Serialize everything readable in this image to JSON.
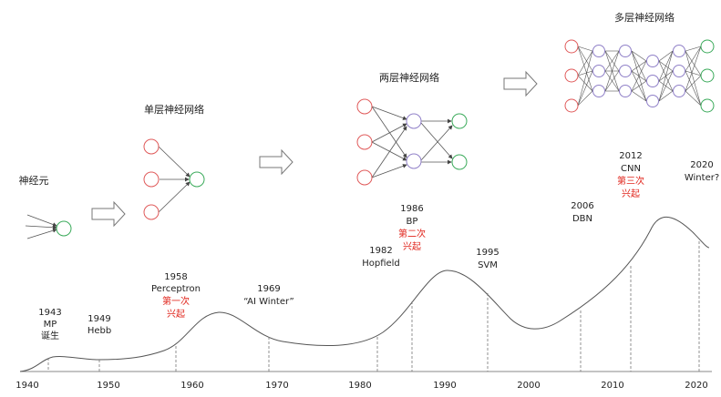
{
  "network_titles": {
    "neuron": "神经元",
    "single_layer": "单层神经网络",
    "two_layer": "两层神经网络",
    "multi_layer": "多层神经网络"
  },
  "timeline": {
    "axis_years": [
      "1940",
      "1950",
      "1960",
      "1970",
      "1980",
      "1990",
      "2000",
      "2010",
      "2020"
    ],
    "events": [
      {
        "year": "1943",
        "name": "MP",
        "note": "诞生"
      },
      {
        "year": "1949",
        "name": "Hebb",
        "note": ""
      },
      {
        "year": "1958",
        "name": "Perceptron",
        "note": "第一次",
        "note2": "兴起"
      },
      {
        "year": "1969",
        "name": "“AI Winter”",
        "note": ""
      },
      {
        "year": "1982",
        "name": "Hopfield",
        "note": ""
      },
      {
        "year": "1986",
        "name": "BP",
        "note": "第二次",
        "note2": "兴起"
      },
      {
        "year": "1995",
        "name": "SVM",
        "note": ""
      },
      {
        "year": "2006",
        "name": "DBN",
        "note": ""
      },
      {
        "year": "2012",
        "name": "CNN",
        "note": "第三次",
        "note2": "兴起"
      },
      {
        "year": "2020",
        "name": "Winter?",
        "note": ""
      }
    ]
  },
  "colors": {
    "input_node": "#e05a5a",
    "hidden_node": "#9080c8",
    "output_node": "#3aaa5a",
    "highlight_text": "#e0241b"
  }
}
